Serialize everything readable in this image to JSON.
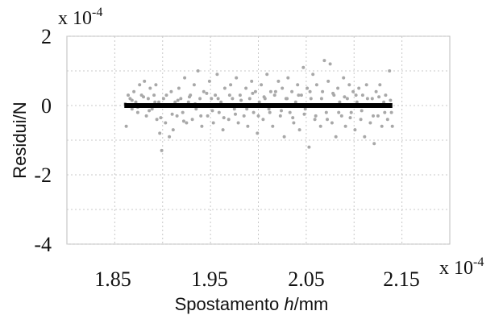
{
  "chart_data": {
    "type": "scatter",
    "title": "",
    "xlabel_prefix": "Spostamento ",
    "xlabel_italic": "h",
    "xlabel_suffix": "/mm",
    "ylabel": "Residui/N",
    "x_ticks": [
      "1.85",
      "1.95",
      "2.05",
      "2.15"
    ],
    "x_tick_values": [
      1.85,
      1.95,
      2.05,
      2.15
    ],
    "y_ticks": [
      "2",
      "0",
      "-2",
      "-4"
    ],
    "y_tick_values": [
      2,
      0,
      -2,
      -4
    ],
    "x_multiplier_base": "x 10",
    "x_multiplier_exp": "-4",
    "y_multiplier_base": "x 10",
    "y_multiplier_exp": "-4",
    "xlim": [
      1.8,
      2.2
    ],
    "ylim": [
      -4,
      2
    ],
    "grid": true,
    "scatter_color": "#a8a8a8",
    "fit_color": "#000000",
    "fit_line": {
      "x": [
        1.86,
        2.14
      ],
      "y": [
        0.0,
        0.0
      ]
    },
    "points": [
      [
        1.861,
        0.05
      ],
      [
        1.862,
        -0.6
      ],
      [
        1.864,
        0.3
      ],
      [
        1.866,
        0.2
      ],
      [
        1.868,
        -0.1
      ],
      [
        1.87,
        0.4
      ],
      [
        1.872,
        0.1
      ],
      [
        1.874,
        -0.2
      ],
      [
        1.876,
        0.6
      ],
      [
        1.878,
        0.3
      ],
      [
        1.879,
        0.0
      ],
      [
        1.881,
        0.7
      ],
      [
        1.883,
        -0.3
      ],
      [
        1.885,
        0.2
      ],
      [
        1.887,
        0.5
      ],
      [
        1.889,
        -0.1
      ],
      [
        1.891,
        0.3
      ],
      [
        1.893,
        0.6
      ],
      [
        1.894,
        -0.4
      ],
      [
        1.896,
        0.1
      ],
      [
        1.897,
        -0.8
      ],
      [
        1.899,
        -1.3
      ],
      [
        1.901,
        0.2
      ],
      [
        1.903,
        -0.5
      ],
      [
        1.905,
        0.0
      ],
      [
        1.907,
        -0.9
      ],
      [
        1.909,
        0.4
      ],
      [
        1.911,
        -0.7
      ],
      [
        1.913,
        0.1
      ],
      [
        1.915,
        -0.3
      ],
      [
        1.917,
        0.5
      ],
      [
        1.919,
        0.2
      ],
      [
        1.921,
        -0.2
      ],
      [
        1.923,
        0.8
      ],
      [
        1.925,
        -0.5
      ],
      [
        1.927,
        0.1
      ],
      [
        1.929,
        0.3
      ],
      [
        1.931,
        -0.4
      ],
      [
        1.933,
        0.6
      ],
      [
        1.935,
        -0.1
      ],
      [
        1.937,
        1.0
      ],
      [
        1.939,
        0.2
      ],
      [
        1.941,
        -0.6
      ],
      [
        1.943,
        0.4
      ],
      [
        1.945,
        0.0
      ],
      [
        1.947,
        -0.3
      ],
      [
        1.949,
        0.7
      ],
      [
        1.951,
        0.2
      ],
      [
        1.953,
        -0.5
      ],
      [
        1.955,
        0.3
      ],
      [
        1.957,
        0.9
      ],
      [
        1.959,
        -0.2
      ],
      [
        1.961,
        0.1
      ],
      [
        1.963,
        -0.7
      ],
      [
        1.965,
        0.5
      ],
      [
        1.967,
        0.0
      ],
      [
        1.969,
        -0.4
      ],
      [
        1.971,
        0.6
      ],
      [
        1.973,
        0.2
      ],
      [
        1.975,
        -0.1
      ],
      [
        1.977,
        0.8
      ],
      [
        1.979,
        -0.5
      ],
      [
        1.981,
        0.3
      ],
      [
        1.983,
        0.0
      ],
      [
        1.985,
        -0.3
      ],
      [
        1.987,
        0.5
      ],
      [
        1.989,
        -0.6
      ],
      [
        1.991,
        0.2
      ],
      [
        1.993,
        0.7
      ],
      [
        1.995,
        -0.2
      ],
      [
        1.997,
        0.4
      ],
      [
        1.999,
        -0.8
      ],
      [
        2.001,
        0.1
      ],
      [
        2.003,
        0.6
      ],
      [
        2.005,
        -0.4
      ],
      [
        2.007,
        0.2
      ],
      [
        2.009,
        0.9
      ],
      [
        2.011,
        -0.1
      ],
      [
        2.013,
        0.4
      ],
      [
        2.015,
        -0.6
      ],
      [
        2.017,
        0.3
      ],
      [
        2.019,
        0.0
      ],
      [
        2.021,
        0.7
      ],
      [
        2.023,
        -0.3
      ],
      [
        2.025,
        0.5
      ],
      [
        2.027,
        -0.9
      ],
      [
        2.029,
        0.2
      ],
      [
        2.031,
        0.8
      ],
      [
        2.033,
        -0.2
      ],
      [
        2.035,
        0.4
      ],
      [
        2.037,
        -0.5
      ],
      [
        2.039,
        0.1
      ],
      [
        2.041,
        0.6
      ],
      [
        2.043,
        -0.7
      ],
      [
        2.045,
        0.3
      ],
      [
        2.047,
        1.1
      ],
      [
        2.049,
        -0.1
      ],
      [
        2.051,
        0.5
      ],
      [
        2.053,
        -1.2
      ],
      [
        2.055,
        0.2
      ],
      [
        2.057,
        0.9
      ],
      [
        2.059,
        -0.4
      ],
      [
        2.061,
        0.6
      ],
      [
        2.063,
        0.0
      ],
      [
        2.065,
        -0.6
      ],
      [
        2.067,
        0.4
      ],
      [
        2.069,
        1.3
      ],
      [
        2.071,
        -0.2
      ],
      [
        2.073,
        0.7
      ],
      [
        2.075,
        1.2
      ],
      [
        2.077,
        -0.5
      ],
      [
        2.079,
        0.3
      ],
      [
        2.081,
        -0.9
      ],
      [
        2.083,
        0.5
      ],
      [
        2.085,
        0.1
      ],
      [
        2.087,
        -0.3
      ],
      [
        2.089,
        0.8
      ],
      [
        2.091,
        -0.6
      ],
      [
        2.093,
        0.2
      ],
      [
        2.095,
        0.6
      ],
      [
        2.097,
        -0.2
      ],
      [
        2.099,
        0.4
      ],
      [
        2.101,
        -0.7
      ],
      [
        2.103,
        0.1
      ],
      [
        2.105,
        0.5
      ],
      [
        2.107,
        -0.4
      ],
      [
        2.109,
        0.3
      ],
      [
        2.111,
        -0.9
      ],
      [
        2.113,
        0.6
      ],
      [
        2.115,
        0.0
      ],
      [
        2.117,
        -0.5
      ],
      [
        2.119,
        0.2
      ],
      [
        2.121,
        -1.1
      ],
      [
        2.123,
        0.4
      ],
      [
        2.125,
        -0.3
      ],
      [
        2.127,
        0.6
      ],
      [
        2.129,
        -0.6
      ],
      [
        2.131,
        0.1
      ],
      [
        2.133,
        0.3
      ],
      [
        2.135,
        -0.4
      ],
      [
        2.137,
        1.0
      ],
      [
        2.139,
        -0.2
      ],
      [
        2.14,
        -0.6
      ],
      [
        1.868,
        0.15
      ],
      [
        1.874,
        -0.05
      ],
      [
        1.88,
        0.25
      ],
      [
        1.886,
        -0.15
      ],
      [
        1.892,
        0.1
      ],
      [
        1.898,
        -0.35
      ],
      [
        1.904,
        0.3
      ],
      [
        1.91,
        -0.25
      ],
      [
        1.916,
        0.15
      ],
      [
        1.922,
        -0.45
      ],
      [
        1.928,
        0.25
      ],
      [
        1.934,
        0.05
      ],
      [
        1.94,
        -0.3
      ],
      [
        1.946,
        0.35
      ],
      [
        1.952,
        -0.15
      ],
      [
        1.958,
        0.2
      ],
      [
        1.964,
        -0.35
      ],
      [
        1.97,
        0.3
      ],
      [
        1.976,
        -0.25
      ],
      [
        1.982,
        0.15
      ],
      [
        1.988,
        -0.1
      ],
      [
        1.994,
        0.35
      ],
      [
        2.0,
        -0.3
      ],
      [
        2.006,
        0.25
      ],
      [
        2.012,
        -0.2
      ],
      [
        2.018,
        0.4
      ],
      [
        2.024,
        -0.15
      ],
      [
        2.03,
        0.2
      ],
      [
        2.036,
        -0.35
      ],
      [
        2.042,
        0.3
      ],
      [
        2.048,
        -0.25
      ],
      [
        2.054,
        0.4
      ],
      [
        2.06,
        -0.3
      ],
      [
        2.066,
        0.2
      ],
      [
        2.072,
        -0.4
      ],
      [
        2.078,
        0.35
      ],
      [
        2.084,
        -0.2
      ],
      [
        2.09,
        0.25
      ],
      [
        2.096,
        -0.35
      ],
      [
        2.102,
        0.3
      ],
      [
        2.108,
        -0.15
      ],
      [
        2.114,
        0.2
      ],
      [
        2.12,
        -0.3
      ],
      [
        2.126,
        0.25
      ],
      [
        2.132,
        -0.2
      ],
      [
        2.138,
        0.15
      ]
    ]
  }
}
